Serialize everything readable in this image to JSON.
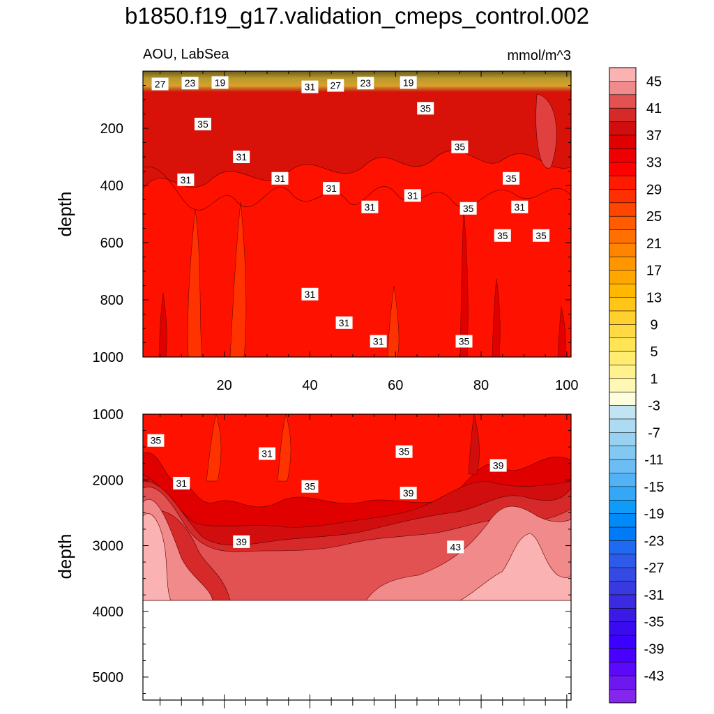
{
  "title": "b1850.f19_g17.validation_cmeps_control.002",
  "chart_data": [
    {
      "type": "contour",
      "panel": "upper",
      "left_label": "AOU, LabSea",
      "right_label": "mmol/m^3",
      "xlabel": "",
      "ylabel": "depth",
      "xlim": [
        1,
        101
      ],
      "ylim": [
        1000,
        0
      ],
      "xticks": [
        20,
        40,
        60,
        80,
        100
      ],
      "xtick_labels": [
        "20",
        "40",
        "60",
        "80",
        "100"
      ],
      "yticks": [
        200,
        400,
        600,
        800,
        1000
      ],
      "ytick_labels": [
        "200",
        "400",
        "600",
        "800",
        "1000"
      ],
      "contour_labels": [
        {
          "text": "27",
          "x": 5,
          "y": 45
        },
        {
          "text": "23",
          "x": 12,
          "y": 42
        },
        {
          "text": "19",
          "x": 19,
          "y": 40
        },
        {
          "text": "31",
          "x": 40,
          "y": 55
        },
        {
          "text": "27",
          "x": 46,
          "y": 50
        },
        {
          "text": "23",
          "x": 53,
          "y": 42
        },
        {
          "text": "19",
          "x": 63,
          "y": 40
        },
        {
          "text": "35",
          "x": 67,
          "y": 130
        },
        {
          "text": "35",
          "x": 15,
          "y": 185
        },
        {
          "text": "35",
          "x": 75,
          "y": 265
        },
        {
          "text": "31",
          "x": 24,
          "y": 300
        },
        {
          "text": "31",
          "x": 11,
          "y": 380
        },
        {
          "text": "31",
          "x": 33,
          "y": 375
        },
        {
          "text": "31",
          "x": 45,
          "y": 410
        },
        {
          "text": "35",
          "x": 87,
          "y": 375
        },
        {
          "text": "31",
          "x": 64,
          "y": 435
        },
        {
          "text": "31",
          "x": 54,
          "y": 475
        },
        {
          "text": "35",
          "x": 77,
          "y": 480
        },
        {
          "text": "31",
          "x": 89,
          "y": 475
        },
        {
          "text": "35",
          "x": 85,
          "y": 575
        },
        {
          "text": "35",
          "x": 94,
          "y": 575
        },
        {
          "text": "31",
          "x": 40,
          "y": 780
        },
        {
          "text": "31",
          "x": 48,
          "y": 880
        },
        {
          "text": "31",
          "x": 56,
          "y": 945
        },
        {
          "text": "35",
          "x": 76,
          "y": 945
        }
      ]
    },
    {
      "type": "contour",
      "panel": "lower",
      "xlabel": "",
      "ylabel": "depth",
      "xlim": [
        1,
        101
      ],
      "ylim": [
        5350,
        1000
      ],
      "xticks": [
        20,
        40,
        60,
        80,
        100
      ],
      "yticks": [
        1000,
        2000,
        3000,
        4000,
        5000
      ],
      "ytick_labels": [
        "1000",
        "2000",
        "3000",
        "4000",
        "5000"
      ],
      "bottom_depth": 3850,
      "contour_labels": [
        {
          "text": "35",
          "x": 4,
          "y": 1400
        },
        {
          "text": "31",
          "x": 30,
          "y": 1600
        },
        {
          "text": "35",
          "x": 62,
          "y": 1570
        },
        {
          "text": "39",
          "x": 84,
          "y": 1780
        },
        {
          "text": "31",
          "x": 10,
          "y": 2050
        },
        {
          "text": "35",
          "x": 40,
          "y": 2100
        },
        {
          "text": "39",
          "x": 63,
          "y": 2200
        },
        {
          "text": "39",
          "x": 24,
          "y": 2940
        },
        {
          "text": "43",
          "x": 74,
          "y": 3020
        }
      ]
    }
  ],
  "colorbar": {
    "labels": [
      "45",
      "41",
      "37",
      "33",
      "29",
      "25",
      "21",
      "17",
      "13",
      "9",
      "5",
      "1",
      "-3",
      "-7",
      "-11",
      "-15",
      "-19",
      "-23",
      "-27",
      "-31",
      "-35",
      "-39",
      "-43"
    ],
    "levels": [
      47,
      45,
      43,
      41,
      39,
      37,
      35,
      33,
      31,
      29,
      27,
      25,
      23,
      21,
      19,
      17,
      15,
      13,
      11,
      9,
      7,
      5,
      3,
      1,
      -1,
      -3,
      -5,
      -7,
      -9,
      -11,
      -13,
      -15,
      -17,
      -19,
      -21,
      -23,
      -25,
      -27,
      -29,
      -31,
      -33,
      -35,
      -37,
      -39,
      -41,
      -43,
      -45
    ],
    "colors": [
      "#FBB2B2",
      "#F18A8A",
      "#E25252",
      "#D62A2A",
      "#D10D0D",
      "#E00000",
      "#EE0000",
      "#FF0000",
      "#FF1A00",
      "#FF3000",
      "#FF4600",
      "#FF5C00",
      "#FF7000",
      "#FF8400",
      "#FF9600",
      "#FFA600",
      "#FFB700",
      "#FFC618",
      "#FFD02E",
      "#FFDA42",
      "#FFE456",
      "#FFEC70",
      "#FFF28E",
      "#FFF8B4",
      "#FFFEDC",
      "#C2E4F2",
      "#ADDBF1",
      "#98D1F1",
      "#82C8F2",
      "#6BBDF4",
      "#52B2F5",
      "#35A7F7",
      "#109BF8",
      "#008BF8",
      "#007AF6",
      "#1F6AF0",
      "#2E5AEA",
      "#354AE4",
      "#383AE0",
      "#3A2AE0",
      "#3C1AE5",
      "#3B0BF0",
      "#3B00FF",
      "#4800FF",
      "#5A0AF8",
      "#6E18F0",
      "#8526EC"
    ]
  }
}
